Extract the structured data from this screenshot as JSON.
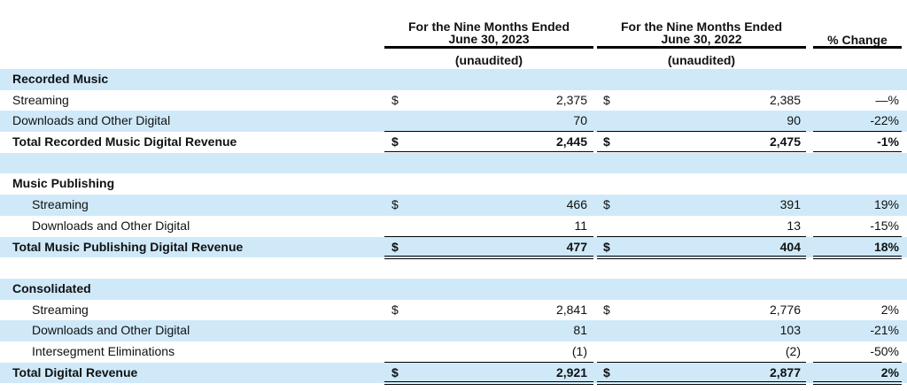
{
  "header": {
    "col1_line1": "For the Nine Months Ended",
    "col1_line2": "June 30, 2023",
    "col2_line1": "For the Nine Months Ended",
    "col2_line2": "June 30, 2022",
    "col3": "% Change",
    "col1_sub": "(unaudited)",
    "col2_sub": "(unaudited)"
  },
  "sections": {
    "recorded": {
      "title": "Recorded Music",
      "streaming": {
        "label": "Streaming",
        "cur1": "$",
        "v1": "2,375",
        "cur2": "$",
        "v2": "2,385",
        "pct": "—%"
      },
      "downloads": {
        "label": "Downloads and Other Digital",
        "v1": "70",
        "v2": "90",
        "pct": "-22%"
      },
      "total": {
        "label": "Total Recorded Music Digital Revenue",
        "cur1": "$",
        "v1": "2,445",
        "cur2": "$",
        "v2": "2,475",
        "pct": "-1%"
      }
    },
    "publishing": {
      "title": "Music Publishing",
      "streaming": {
        "label": "Streaming",
        "cur1": "$",
        "v1": "466",
        "cur2": "$",
        "v2": "391",
        "pct": "19%"
      },
      "downloads": {
        "label": "Downloads and Other Digital",
        "v1": "11",
        "v2": "13",
        "pct": "-15%"
      },
      "total": {
        "label": "Total Music Publishing Digital Revenue",
        "cur1": "$",
        "v1": "477",
        "cur2": "$",
        "v2": "404",
        "pct": "18%"
      }
    },
    "consolidated": {
      "title": "Consolidated",
      "streaming": {
        "label": "Streaming",
        "cur1": "$",
        "v1": "2,841",
        "cur2": "$",
        "v2": "2,776",
        "pct": "2%"
      },
      "downloads": {
        "label": "Downloads and Other Digital",
        "v1": "81",
        "v2": "103",
        "pct": "-21%"
      },
      "intersegment": {
        "label": "Intersegment Eliminations",
        "v1": "(1)",
        "v2": "(2)",
        "pct": "-50%"
      },
      "total": {
        "label": "Total Digital Revenue",
        "cur1": "$",
        "v1": "2,921",
        "cur2": "$",
        "v2": "2,877",
        "pct": "2%"
      }
    }
  },
  "colors": {
    "row_band": "#cfe9f9",
    "text": "#111111",
    "rule": "#000000"
  }
}
